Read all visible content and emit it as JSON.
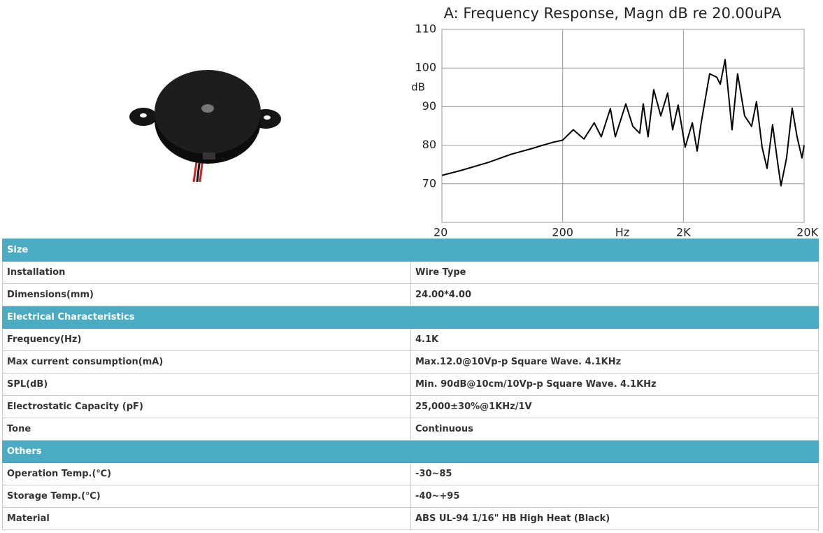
{
  "chart_data": {
    "type": "line",
    "title": "A: Frequency Response, Magn dB re 20.00uPA",
    "x_label": "Hz",
    "y_label": "dB",
    "xscale": "log",
    "grid": true,
    "xlim": [
      20,
      20000
    ],
    "ylim": [
      60,
      110
    ],
    "xticks": [
      20,
      200,
      {
        "value": 2000,
        "label": "2K"
      },
      {
        "value": 20000,
        "label": "20K"
      }
    ],
    "yticks": [
      70,
      80,
      90,
      100,
      110
    ],
    "x": [
      20,
      29,
      49,
      74,
      110,
      164,
      200,
      245,
      300,
      365,
      418,
      497,
      546,
      667,
      762,
      870,
      930,
      1020,
      1135,
      1300,
      1480,
      1630,
      1810,
      2070,
      2370,
      2600,
      2810,
      3300,
      3780,
      4040,
      4430,
      5060,
      5630,
      6430,
      7350,
      8070,
      8970,
      9860,
      10960,
      12030,
      12860,
      14320,
      15920,
      17470,
      19190,
      20000
    ],
    "series": [
      {
        "color": "#000000",
        "values": [
          72.2,
          73.5,
          75.6,
          77.6,
          79.1,
          80.7,
          81.3,
          84,
          81.6,
          85.8,
          82.2,
          89.5,
          82.2,
          90.7,
          84.9,
          83.1,
          90.7,
          82.2,
          94.4,
          87.6,
          93.5,
          84,
          90.4,
          79.5,
          85.8,
          78.5,
          85.8,
          98.5,
          97.6,
          95.8,
          102.2,
          84,
          98.5,
          87.6,
          84.9,
          91.3,
          79.5,
          74,
          85.3,
          75.8,
          69.5,
          76.7,
          89.6,
          82.2,
          76.7,
          80
        ]
      }
    ]
  },
  "table": {
    "sections": [
      {
        "title": "Size",
        "rows": [
          [
            "Installation",
            "Wire Type"
          ],
          [
            "Dimensions(mm)",
            "24.00*4.00"
          ]
        ]
      },
      {
        "title": "Electrical Characteristics",
        "rows": [
          [
            "Frequency(Hz)",
            "4.1K"
          ],
          [
            "Max current consumption(mA)",
            "Max.12.0@10Vp-p Square Wave. 4.1KHz"
          ],
          [
            "SPL(dB)",
            "Min. 90dB@10cm/10Vp-p Square Wave. 4.1KHz"
          ],
          [
            "Electrostatic Capacity (pF)",
            "25,000±30%@1KHz/1V"
          ],
          [
            "Tone",
            "Continuous"
          ]
        ]
      },
      {
        "title": "Others",
        "rows": [
          [
            "Operation Temp.(℃)",
            "-30~85"
          ],
          [
            "Storage Temp.(℃)",
            "-40~+95"
          ],
          [
            "Material",
            "ABS UL-94 1/16\" HB High Heat (Black)"
          ]
        ]
      }
    ]
  }
}
